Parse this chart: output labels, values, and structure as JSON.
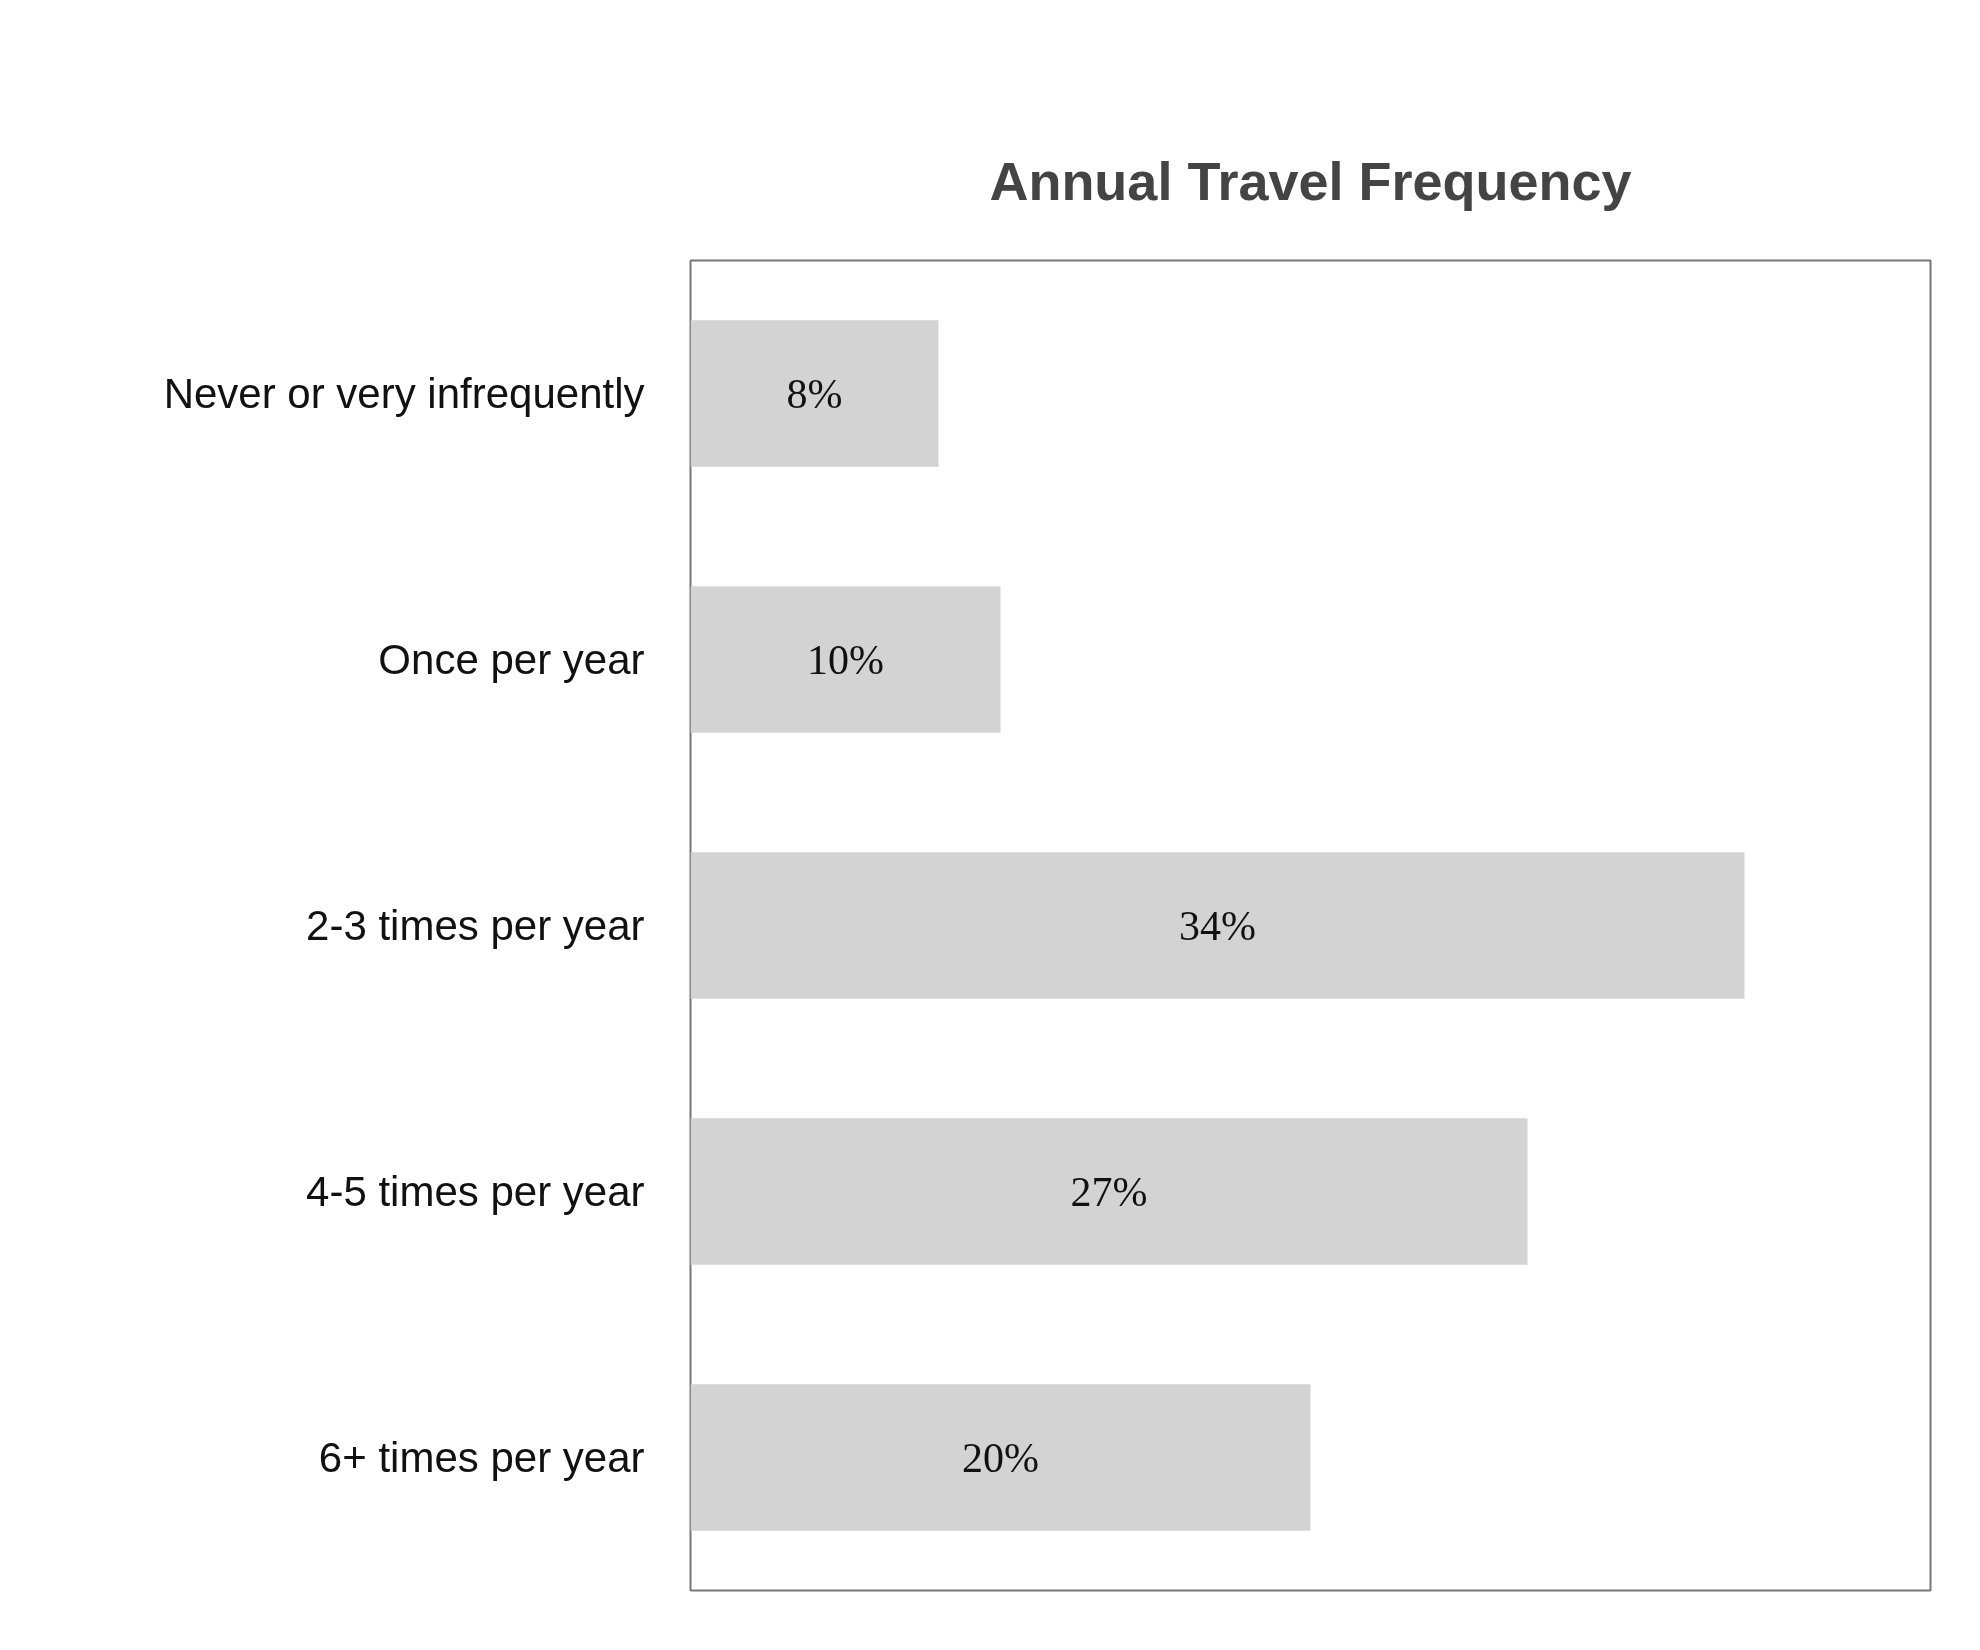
{
  "chart_data": {
    "type": "bar",
    "orientation": "horizontal",
    "title": "Annual Travel Frequency",
    "categories": [
      "Never or very infrequently",
      "Once per year",
      "2-3 times per year",
      "4-5 times per year",
      "6+ times per year"
    ],
    "values": [
      8,
      10,
      34,
      27,
      20
    ],
    "value_labels": [
      "8%",
      "10%",
      "34%",
      "27%",
      "20%"
    ],
    "color": "#d3d3d3",
    "xlim": [
      0,
      40
    ],
    "tick_labels": "y",
    "grid": false
  }
}
